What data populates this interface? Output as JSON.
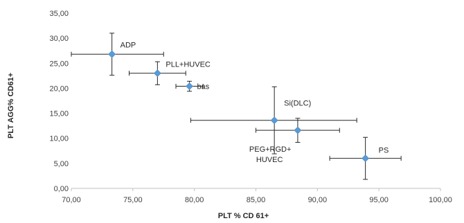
{
  "chart_data": {
    "type": "scatter",
    "xlabel": "PLT % CD 61+",
    "ylabel": "PLT AGG% CD61+",
    "xlim": [
      70,
      100
    ],
    "ylim": [
      0,
      35
    ],
    "x_ticks": [
      "70,00",
      "75,00",
      "80,00",
      "85,00",
      "90,00",
      "95,00",
      "100,00"
    ],
    "y_ticks": [
      "0,00",
      "5,00",
      "10,00",
      "15,00",
      "20,00",
      "25,00",
      "30,00",
      "35,00"
    ],
    "grid": false,
    "legend": "none",
    "marker_color": "#5b9bd5",
    "points": [
      {
        "label": "ADP",
        "x": 73.3,
        "y": 26.8,
        "x_err": [
          3.3,
          4.2
        ],
        "y_err": [
          4.2,
          4.2
        ]
      },
      {
        "label": "PLL+HUVEC",
        "x": 77.0,
        "y": 23.0,
        "x_err": [
          2.3,
          2.3
        ],
        "y_err": [
          2.3,
          2.3
        ]
      },
      {
        "label": "bas",
        "x": 79.6,
        "y": 20.4,
        "x_err": [
          1.1,
          1.1
        ],
        "y_err": [
          1.0,
          1.0
        ]
      },
      {
        "label": "Si(DLC)",
        "x": 86.5,
        "y": 13.6,
        "x_err": [
          6.8,
          6.7
        ],
        "y_err": [
          6.7,
          6.7
        ]
      },
      {
        "label": "PEG+RGD+\nHUVEC",
        "x": 88.4,
        "y": 11.6,
        "x_err": [
          3.4,
          3.4
        ],
        "y_err": [
          2.4,
          2.4
        ]
      },
      {
        "label": "PS",
        "x": 93.9,
        "y": 6.0,
        "x_err": [
          2.9,
          2.9
        ],
        "y_err": [
          4.2,
          4.2
        ]
      }
    ]
  }
}
